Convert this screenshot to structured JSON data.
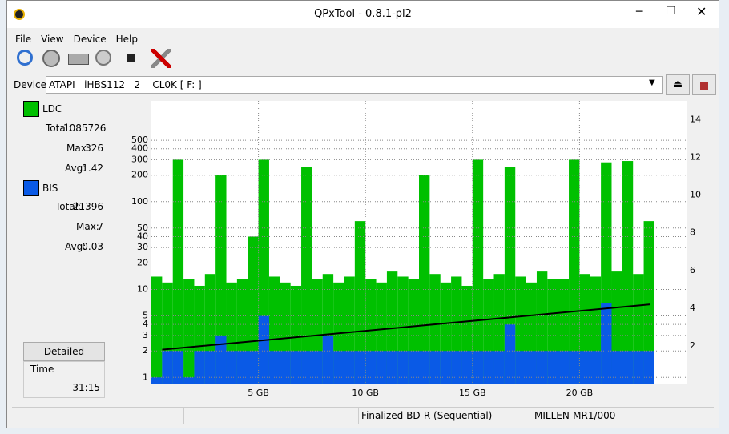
{
  "window": {
    "title": "QPxTool - 0.8.1-pl2",
    "menu": [
      "File",
      "View",
      "Device",
      "Help"
    ],
    "device_label": "Device:",
    "device": "ATAPI   iHBS112   2    CL0K [ F: ]"
  },
  "side": {
    "ldc": {
      "name": "LDC",
      "total_label": "Total:",
      "total": 1085726,
      "max_label": "Max:",
      "max": 326,
      "avg_label": "Avg:",
      "avg": 1.42
    },
    "bis": {
      "name": "BIS",
      "total_label": "Total:",
      "total": 21396,
      "max_label": "Max:",
      "max": 7,
      "avg_label": "Avg:",
      "avg": 0.03
    },
    "button": "Detailed",
    "time_label": "Time",
    "time": "31:15"
  },
  "status": [
    "Finalized BD-R (Sequential)",
    "MILLEN-MR1/000"
  ],
  "chart_data": {
    "type": "bar",
    "log_y": true,
    "grid": true,
    "x": [
      0.25,
      0.75,
      1.25,
      1.75,
      2.25,
      2.75,
      3.25,
      3.75,
      4.25,
      4.75,
      5.25,
      5.75,
      6.25,
      6.75,
      7.25,
      7.75,
      8.25,
      8.75,
      9.25,
      9.75,
      10.25,
      10.75,
      11.25,
      11.75,
      12.25,
      12.75,
      13.25,
      13.75,
      14.25,
      14.75,
      15.25,
      15.75,
      16.25,
      16.75,
      17.25,
      17.75,
      18.25,
      18.75,
      19.25,
      19.75,
      20.25,
      20.75,
      21.25,
      21.75,
      22.25,
      22.75,
      23.25
    ],
    "bar_width": 0.5,
    "series": [
      {
        "name": "LDC",
        "color": "#00c000",
        "values": [
          14,
          12,
          300,
          13,
          11,
          15,
          200,
          12,
          13,
          40,
          300,
          14,
          12,
          11,
          250,
          13,
          15,
          12,
          14,
          60,
          13,
          12,
          16,
          14,
          13,
          200,
          15,
          12,
          14,
          11,
          300,
          13,
          15,
          250,
          14,
          12,
          16,
          13,
          13,
          300,
          15,
          14,
          280,
          16,
          290,
          15,
          60
        ]
      },
      {
        "name": "BIS",
        "color": "#0a5ae6",
        "values": [
          1,
          2,
          2,
          1,
          2,
          2,
          3,
          2,
          2,
          2,
          5,
          2,
          2,
          2,
          2,
          2,
          3,
          2,
          2,
          2,
          2,
          2,
          2,
          2,
          2,
          2,
          2,
          2,
          2,
          2,
          2,
          2,
          2,
          4,
          2,
          2,
          2,
          2,
          2,
          2,
          2,
          2,
          7,
          2,
          2,
          2,
          2
        ]
      },
      {
        "name": "Speed",
        "type": "line",
        "axis": "y2",
        "color": "#000000",
        "x": [
          0.5,
          23.3
        ],
        "values": [
          1.8,
          4.2
        ]
      }
    ],
    "xlim": [
      0,
      25
    ],
    "xticks": [
      {
        "value": 5,
        "label": "5 GB"
      },
      {
        "value": 10,
        "label": "10 GB"
      },
      {
        "value": 15,
        "label": "15 GB"
      },
      {
        "value": 20,
        "label": "20 GB"
      }
    ],
    "ylim": [
      0.85,
      1400
    ],
    "yticks": [
      1,
      2,
      3,
      4,
      5,
      10,
      20,
      30,
      40,
      50,
      100,
      200,
      300,
      400,
      500
    ],
    "y2lim": [
      0,
      15
    ],
    "y2ticks": [
      2,
      4,
      6,
      8,
      10,
      12,
      14
    ]
  }
}
